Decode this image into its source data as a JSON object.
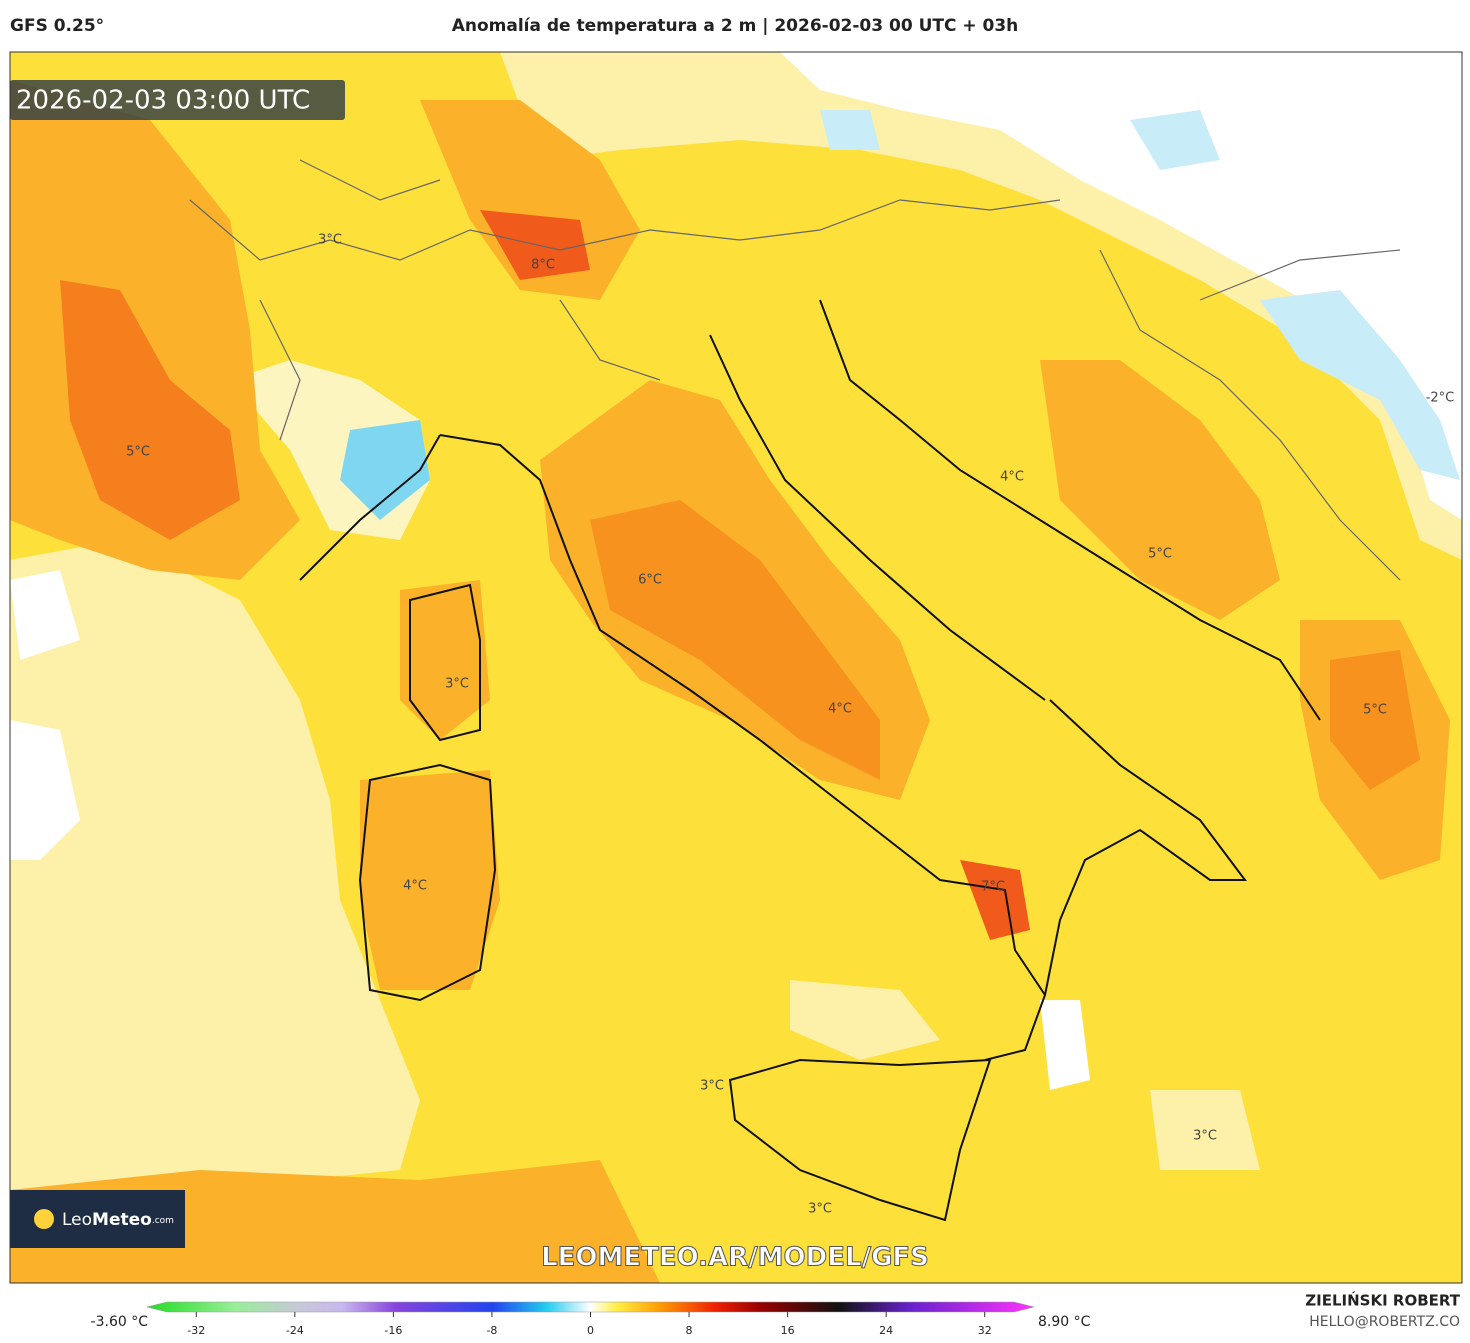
{
  "header": {
    "model": "GFS 0.25°",
    "title": "Anomalía de temperatura a 2 m | 2026-02-03 00 UTC + 03h"
  },
  "map": {
    "timestamp": "2026-02-03 03:00 UTC",
    "labels": [
      "3°C",
      "8°C",
      "5°C",
      "6°C",
      "3°C",
      "4°C",
      "4°C",
      "4°C",
      "5°C",
      "-2°C",
      "5°C",
      "7°C",
      "3°C",
      "3°C",
      "3°C"
    ],
    "watermark": "LEOMETEO.AR/MODEL/GFS"
  },
  "logo": {
    "name_light": "Leo",
    "name_bold": "Meteo",
    "suffix": ".com"
  },
  "colorbar": {
    "min_label": "-3.60 °C",
    "max_label": "8.90 °C",
    "range": [
      -36,
      36
    ],
    "ticks": [
      -32,
      -24,
      -16,
      -8,
      0,
      8,
      16,
      24,
      32
    ]
  },
  "credit": {
    "author": "ZIELIŃSKI ROBERT",
    "email": "HELLO@ROBERTZ.CO"
  }
}
